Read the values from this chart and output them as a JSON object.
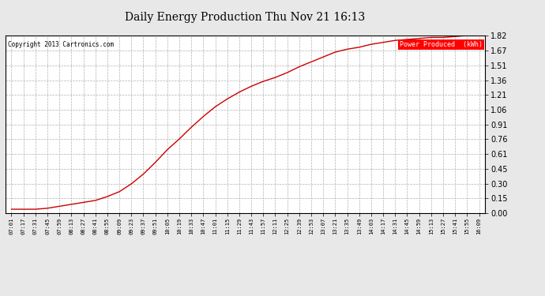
{
  "title": "Daily Energy Production Thu Nov 21 16:13",
  "copyright": "Copyright 2013 Cartronics.com",
  "legend_label": "Power Produced  (kWh)",
  "line_color": "#cc0000",
  "background_color": "#e8e8e8",
  "plot_bg_color": "#ffffff",
  "grid_color": "#b0b0b0",
  "ylim": [
    0.0,
    1.82
  ],
  "yticks": [
    0.0,
    0.15,
    0.3,
    0.45,
    0.61,
    0.76,
    0.91,
    1.06,
    1.21,
    1.36,
    1.51,
    1.67,
    1.82
  ],
  "x_labels": [
    "07:01",
    "07:17",
    "07:31",
    "07:45",
    "07:59",
    "08:13",
    "08:27",
    "08:41",
    "08:55",
    "09:09",
    "09:23",
    "09:37",
    "09:51",
    "10:05",
    "10:19",
    "10:33",
    "10:47",
    "11:01",
    "11:15",
    "11:29",
    "11:43",
    "11:57",
    "12:11",
    "12:25",
    "12:39",
    "12:53",
    "13:07",
    "13:21",
    "13:35",
    "13:49",
    "14:03",
    "14:17",
    "14:31",
    "14:45",
    "14:59",
    "15:13",
    "15:27",
    "15:41",
    "15:55",
    "16:09"
  ],
  "curve_y_values": [
    0.04,
    0.04,
    0.04,
    0.05,
    0.07,
    0.09,
    0.11,
    0.13,
    0.17,
    0.22,
    0.3,
    0.4,
    0.52,
    0.65,
    0.76,
    0.88,
    0.99,
    1.09,
    1.17,
    1.24,
    1.3,
    1.35,
    1.39,
    1.44,
    1.5,
    1.55,
    1.6,
    1.65,
    1.68,
    1.7,
    1.73,
    1.75,
    1.77,
    1.78,
    1.79,
    1.8,
    1.8,
    1.81,
    1.82,
    1.82
  ]
}
